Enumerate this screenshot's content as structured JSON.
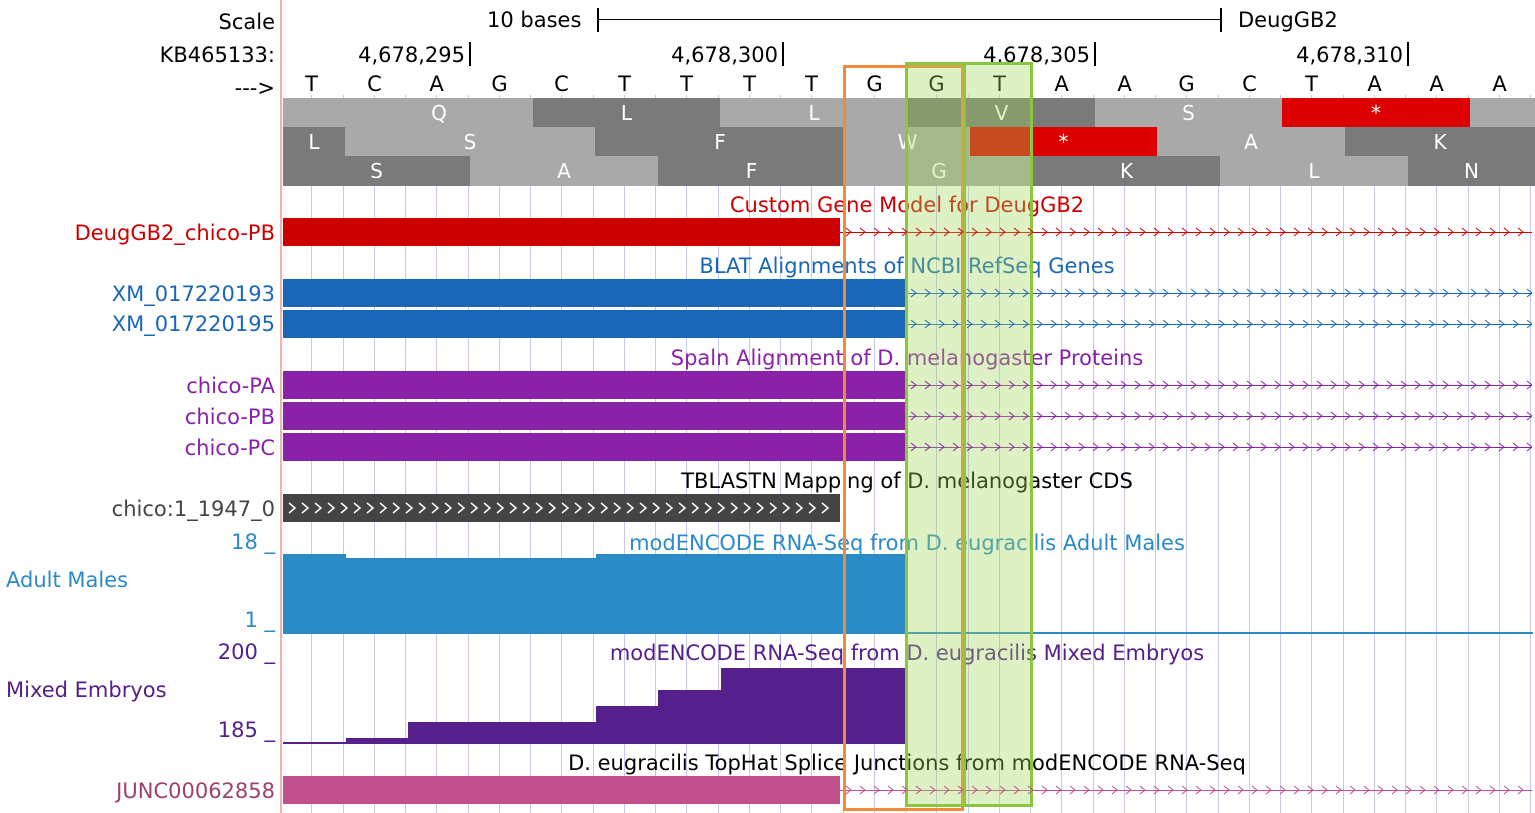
{
  "header": {
    "scale_label": "Scale",
    "scale_bar_label": "10 bases",
    "assembly": "DeugGB2",
    "chrom_label": "KB465133:",
    "strand_arrow": "--->",
    "positions": [
      "4,678,295",
      "4,678,300",
      "4,678,305",
      "4,678,310"
    ]
  },
  "bases": [
    "T",
    "C",
    "A",
    "G",
    "C",
    "T",
    "T",
    "T",
    "T",
    "G",
    "G",
    "T",
    "A",
    "A",
    "G",
    "C",
    "T",
    "A",
    "A",
    "A"
  ],
  "translation": {
    "frame1": [
      "Q",
      "L",
      "L",
      "V",
      "S",
      "*"
    ],
    "frame2": [
      "L",
      "S",
      "F",
      "W",
      "*",
      "A",
      "K"
    ],
    "frame3": [
      "S",
      "A",
      "F",
      "G",
      "K",
      "L",
      "N"
    ]
  },
  "tracks": {
    "gene_model": {
      "title": "Custom Gene Model for DeugGB2",
      "items": [
        "DeugGB2_chico-PB"
      ],
      "color": "#cc0000"
    },
    "refseq": {
      "title": "BLAT Alignments of NCBI RefSeq Genes",
      "items": [
        "XM_017220193",
        "XM_017220195"
      ],
      "color": "#1a66b8"
    },
    "spaln": {
      "title": "Spaln Alignment of D. melanogaster Proteins",
      "items": [
        "chico-PA",
        "chico-PB",
        "chico-PC"
      ],
      "color": "#8a22a8"
    },
    "tblastn": {
      "title": "TBLASTN Mapping of D. melanogaster CDS",
      "items": [
        "chico:1_1947_0"
      ],
      "color": "#444444"
    },
    "rnaseq_males": {
      "title": "modENCODE RNA-Seq from D. eugracilis Adult Males",
      "label": "Adult Males",
      "ymax": "18 _",
      "ymin": "1 _",
      "color": "#2b8bc6"
    },
    "rnaseq_embryos": {
      "title": "modENCODE RNA-Seq from D. eugracilis Mixed Embryos",
      "label": "Mixed Embryos",
      "ymax": "200 _",
      "ymin": "185 _",
      "color": "#55208c"
    },
    "splice": {
      "title": "D. eugracilis TopHat Splice Junctions from modENCODE RNA-Seq",
      "items": [
        "JUNC00062858"
      ],
      "color": "#c0508c"
    }
  },
  "highlight_colors": {
    "orange": "#f08a3c",
    "green": "#8cc63c"
  }
}
